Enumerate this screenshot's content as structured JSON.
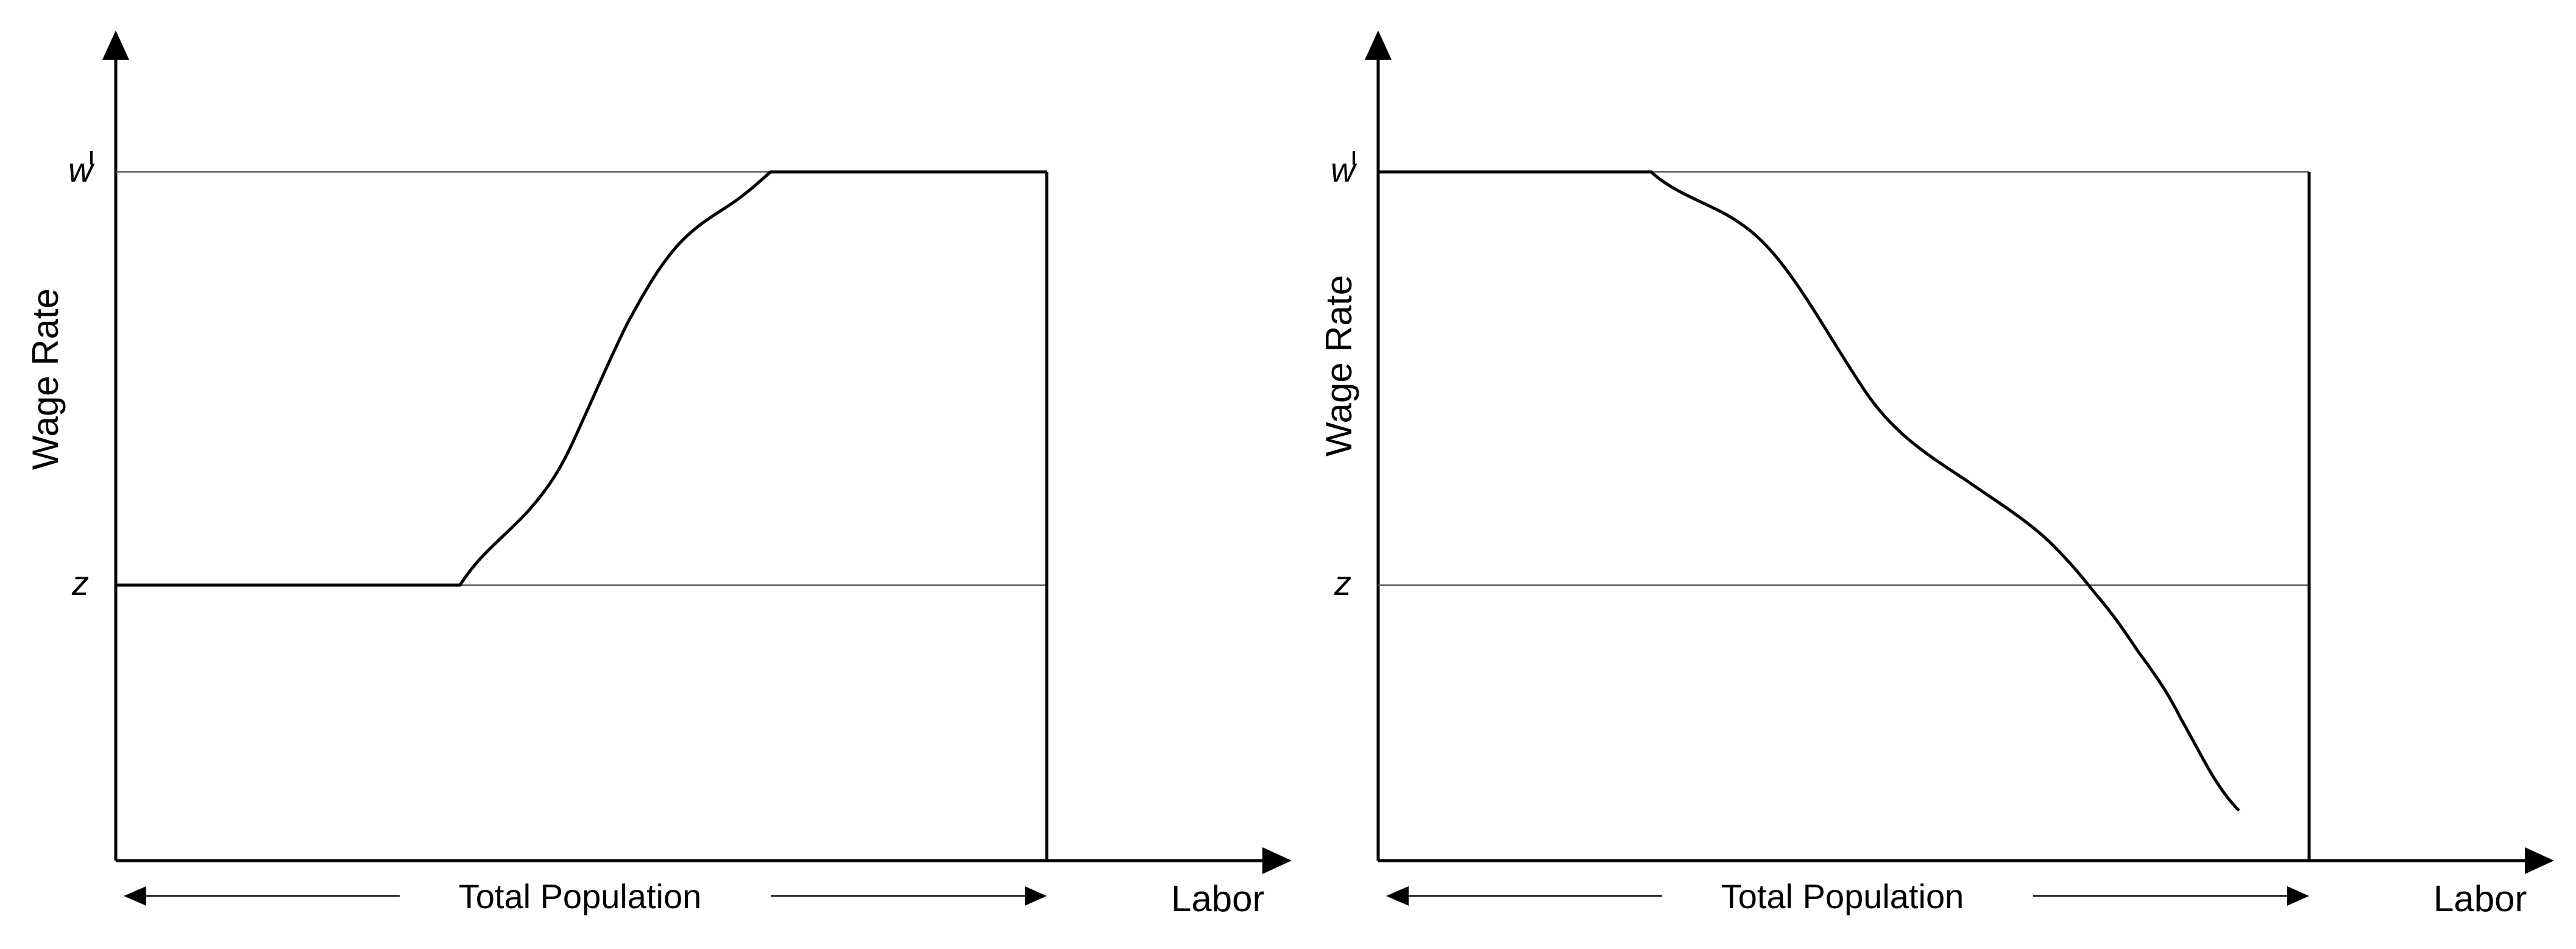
{
  "diagrams": [
    {
      "id": "left",
      "y_axis_label": "Wage Rate",
      "x_axis_label": "Labor",
      "population_label": "Total Population",
      "levels": {
        "w_bar": "w",
        "z": "z"
      },
      "curve": "increasing from z to w-bar"
    },
    {
      "id": "right",
      "y_axis_label": "Wage Rate",
      "x_axis_label": "Labor",
      "population_label": "Total Population",
      "levels": {
        "w_bar": "w",
        "z": "z"
      },
      "curve": "decreasing from w-bar through z"
    }
  ]
}
